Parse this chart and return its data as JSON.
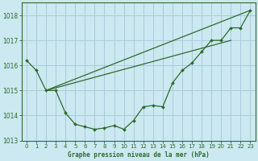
{
  "title": "Graphe pression niveau de la mer (hPa)",
  "bg_color": "#cce8f0",
  "grid_color": "#aaccdd",
  "line_color": "#2d6b2d",
  "text_color": "#2d6b2d",
  "ylim": [
    1013.0,
    1018.5
  ],
  "xlim": [
    -0.5,
    23.5
  ],
  "yticks": [
    1013,
    1014,
    1015,
    1016,
    1017,
    1018
  ],
  "xticks": [
    0,
    1,
    2,
    3,
    4,
    5,
    6,
    7,
    8,
    9,
    10,
    11,
    12,
    13,
    14,
    15,
    16,
    17,
    18,
    19,
    20,
    21,
    22,
    23
  ],
  "main_series": [
    1016.2,
    1015.8,
    1015.0,
    1015.0,
    1014.1,
    1013.65,
    1013.55,
    1013.45,
    1013.5,
    1013.6,
    1013.45,
    1013.8,
    1014.35,
    1014.4,
    1014.35,
    1015.3,
    1015.8,
    1016.1,
    1016.55,
    1017.0,
    1017.0,
    1017.5,
    1017.5,
    1018.2
  ],
  "straight_line1_x": [
    2,
    23
  ],
  "straight_line1_y": [
    1015.0,
    1018.2
  ],
  "straight_line2_x": [
    2,
    21
  ],
  "straight_line2_y": [
    1015.0,
    1017.0
  ],
  "figsize": [
    3.2,
    2.0
  ],
  "dpi": 100
}
